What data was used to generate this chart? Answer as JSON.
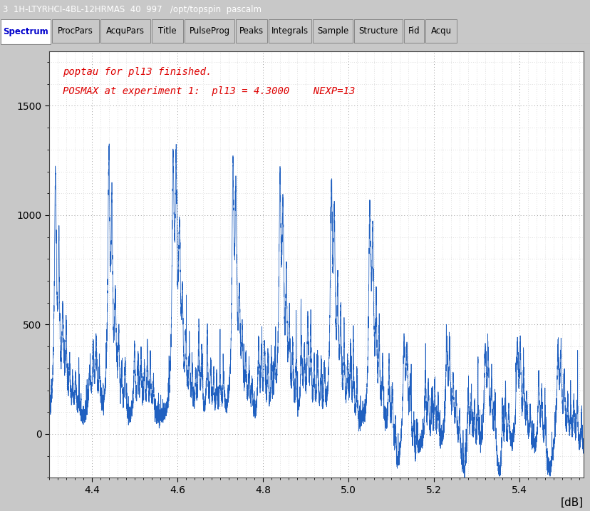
{
  "title_bar": "3  1H-LTYRHCI-4BL-12HRMAS  40  997   /opt/topspin  pascalm",
  "tabs": [
    "Spectrum",
    "ProcPars",
    "AcquPars",
    "Title",
    "PulseProg",
    "Peaks",
    "Integrals",
    "Sample",
    "Structure",
    "Fid",
    "Acqu"
  ],
  "active_tab": "Spectrum",
  "annotation_line1": "poptau for pl13 finished.",
  "annotation_line2": "POSMAX at experiment 1:  pl13 = 4.3000    NEXP=13",
  "xlabel": "[dB]",
  "xlim": [
    4.3,
    5.55
  ],
  "ylim": [
    -200,
    1750
  ],
  "xticks": [
    4.4,
    4.6,
    4.8,
    5.0,
    5.2,
    5.4
  ],
  "yticks": [
    0,
    500,
    1000,
    1500
  ],
  "line_color": "#2060c0",
  "plot_bg": "#ffffff",
  "outer_bg": "#c8c8c8",
  "title_bg": "#000080",
  "title_fg": "#ffffff",
  "annotation_color": "#dd0000",
  "grid_color": "#999999"
}
